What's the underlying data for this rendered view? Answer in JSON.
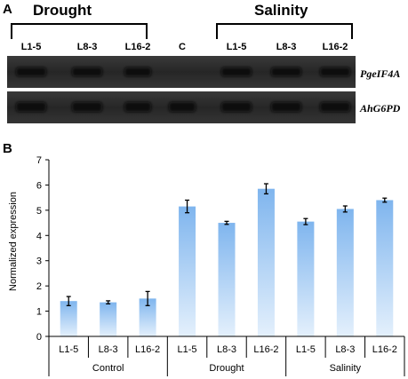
{
  "panel_a": {
    "letter": "A",
    "group_left": "Drought",
    "group_right": "Salinity",
    "lanes": [
      "L1-5",
      "L8-3",
      "L16-2",
      "C",
      "L1-5",
      "L8-3",
      "L16-2"
    ],
    "genes": [
      "PgeIF4A",
      "AhG6PD"
    ]
  },
  "panel_b": {
    "letter": "B"
  },
  "colors": {
    "bar_top": "#7fb5ee",
    "bar_bottom": "#dfeefc",
    "gel_bg": "#2b2b2b",
    "band": "#0b0b0b"
  },
  "chart_data": {
    "type": "bar",
    "categories": [
      "L1-5",
      "L8-3",
      "L16-2",
      "L1-5",
      "L8-3",
      "L16-2",
      "L1-5",
      "L8-3",
      "L16-2"
    ],
    "groups": [
      {
        "name": "Control",
        "categories": [
          "L1-5",
          "L8-3",
          "L16-2"
        ]
      },
      {
        "name": "Drought",
        "categories": [
          "L1-5",
          "L8-3",
          "L16-2"
        ]
      },
      {
        "name": "Salinity",
        "categories": [
          "L1-5",
          "L8-3",
          "L16-2"
        ]
      }
    ],
    "values": [
      1.4,
      1.35,
      1.5,
      5.15,
      4.5,
      5.85,
      4.55,
      5.05,
      5.4
    ],
    "errors": [
      0.18,
      0.06,
      0.28,
      0.25,
      0.06,
      0.2,
      0.12,
      0.12,
      0.08
    ],
    "ylabel": "Normalized expression",
    "xlabel": "",
    "ylim": [
      0,
      7
    ],
    "yticks": [
      "0",
      "1",
      "2",
      "3",
      "4",
      "5",
      "6",
      "7"
    ],
    "grid": false,
    "legend": "none"
  }
}
